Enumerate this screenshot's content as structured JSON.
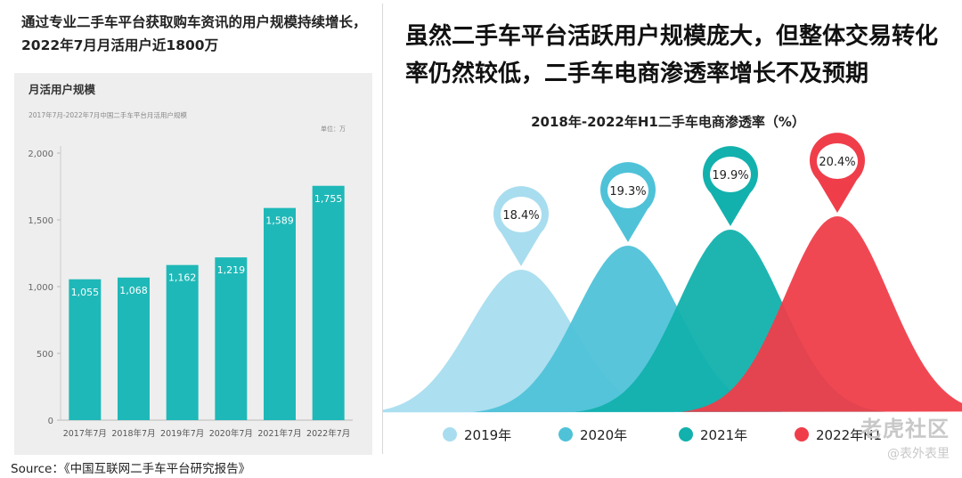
{
  "left": {
    "title": "通过专业二手车平台获取购车资讯的用户规模持续增长，2022年7月月活用户近1800万",
    "card_title": "月活用户规模",
    "card_subtitle": "2017年7月-2022年7月中国二手车平台月活用户规模",
    "unit": "单位：万"
  },
  "right": {
    "title": "虽然二手车平台活跃用户规模庞大，但整体交易转化率仍然较低，二手车电商渗透率增长不及预期",
    "chart_title": "2018年-2022年H1二手车电商渗透率（%）"
  },
  "source": "Source：《中国互联网二手车平台研究报告》",
  "watermark": {
    "line1": "老虎社区",
    "line2": "@表外表里"
  },
  "colors": {
    "teal": "#1fb8b8",
    "light_blue": "#a8ddef",
    "mid_blue": "#4fc2d8",
    "dark_teal": "#12b1ad",
    "red": "#ef3e4a",
    "card_bg": "#eeeeee"
  },
  "chart_data": [
    {
      "type": "bar",
      "title": "2017年7月-2022年7月中国二手车平台月活用户规模",
      "categories": [
        "2017年7月",
        "2018年7月",
        "2019年7月",
        "2020年7月",
        "2021年7月",
        "2022年7月"
      ],
      "values": [
        1055,
        1068,
        1162,
        1219,
        1589,
        1755
      ],
      "value_labels": [
        "1,055",
        "1,068",
        "1,162",
        "1,219",
        "1,589",
        "1,755"
      ],
      "ylim": [
        0,
        2000
      ],
      "yticks": [
        0,
        500,
        1000,
        1500,
        2000
      ],
      "ytick_labels": [
        "0",
        "500",
        "1,000",
        "1,500",
        "2,000"
      ],
      "ylabel": "单位：万",
      "grid": false
    },
    {
      "type": "area",
      "title": "2018年-2022年H1二手车电商渗透率（%）",
      "categories": [
        "2019年",
        "2020年",
        "2021年",
        "2022年H1"
      ],
      "values": [
        18.4,
        19.3,
        19.9,
        20.4
      ],
      "value_labels": [
        "18.4%",
        "19.3%",
        "19.9%",
        "20.4%"
      ],
      "legend": "bottom"
    }
  ]
}
